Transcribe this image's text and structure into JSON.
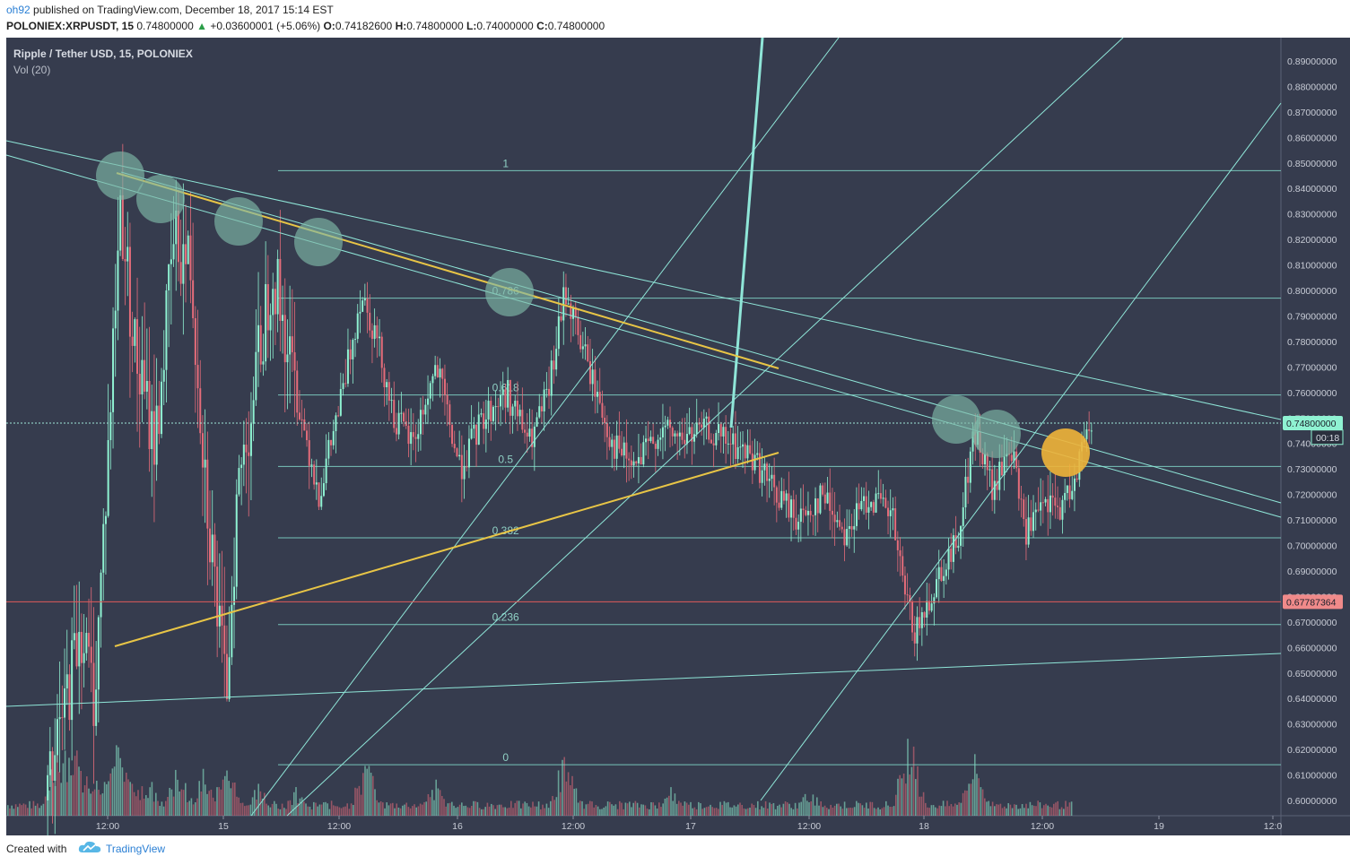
{
  "header": {
    "user": "oh92",
    "published": "published on TradingView.com, December 18, 2017 15:14 EST",
    "symbol": "POLONIEX:XRPUSDT, 15",
    "last": "0.74800000",
    "arrow": "▲",
    "change": "+0.03600001 (+5.06%)",
    "o_label": "O:",
    "o_value": "0.74182600",
    "h_label": "H:",
    "h_value": "0.74800000",
    "l_label": "L:",
    "l_value": "0.74000000",
    "c_label": "C:",
    "c_value": "0.74800000"
  },
  "legend": {
    "title": "Ripple / Tether USD, 15, POLONIEX",
    "indicator": "Vol (20)"
  },
  "footer": {
    "created_with": "Created with",
    "brand": "TradingView",
    "logo_icon": "tradingview-cloud-icon"
  },
  "colors": {
    "background": "#363c4e",
    "up": "#8ff2d2",
    "down": "#e56c7a",
    "fib": "#7fd3c5",
    "trend": "#8fe6d8",
    "yellow": "#e8c546",
    "circle_green": "#7fb8a8",
    "circle_orange": "#f0b43a",
    "red_line": "#e05a5a"
  },
  "chart_data": {
    "type": "candlestick",
    "title": "Ripple / Tether USD, 15, POLONIEX",
    "y_ticks": [
      "0.89000000",
      "0.88000000",
      "0.87000000",
      "0.86000000",
      "0.85000000",
      "0.84000000",
      "0.83000000",
      "0.82000000",
      "0.81000000",
      "0.80000000",
      "0.79000000",
      "0.78000000",
      "0.77000000",
      "0.76000000",
      "0.75000000",
      "0.74000000",
      "0.73000000",
      "0.72000000",
      "0.71000000",
      "0.70000000",
      "0.69000000",
      "0.68000000",
      "0.67000000",
      "0.66000000",
      "0.65000000",
      "0.64000000",
      "0.63000000",
      "0.62000000",
      "0.61000000",
      "0.60000000"
    ],
    "y_values": [
      0.89,
      0.88,
      0.87,
      0.86,
      0.85,
      0.84,
      0.83,
      0.82,
      0.81,
      0.8,
      0.79,
      0.78,
      0.77,
      0.76,
      0.75,
      0.74,
      0.73,
      0.72,
      0.71,
      0.7,
      0.69,
      0.68,
      0.67,
      0.66,
      0.65,
      0.64,
      0.63,
      0.62,
      0.61,
      0.6
    ],
    "x_ticks": [
      "12:00",
      "15",
      "12:00",
      "16",
      "12:00",
      "17",
      "12:00",
      "18",
      "12:00",
      "19",
      "12:0"
    ],
    "ylim": [
      0.595,
      0.905
    ],
    "fib_levels": [
      {
        "label": "1",
        "value": 0.847
      },
      {
        "label": "0.786",
        "value": 0.797
      },
      {
        "label": "0.618",
        "value": 0.759
      },
      {
        "label": "0.5",
        "value": 0.731
      },
      {
        "label": "0.382",
        "value": 0.703
      },
      {
        "label": "0.236",
        "value": 0.669
      },
      {
        "label": "0",
        "value": 0.614
      }
    ],
    "price_marks": [
      {
        "label": "0.74800000",
        "value": 0.748
      },
      {
        "label": "00:18",
        "value": 0.7435
      },
      {
        "label": "0.67787364",
        "value": 0.6779
      }
    ],
    "price_path": [
      {
        "t": 14.24,
        "p": 0.6
      },
      {
        "t": 14.3,
        "p": 0.63
      },
      {
        "t": 14.38,
        "p": 0.67
      },
      {
        "t": 14.44,
        "p": 0.64
      },
      {
        "t": 14.5,
        "p": 0.74
      },
      {
        "t": 14.55,
        "p": 0.835
      },
      {
        "t": 14.62,
        "p": 0.77
      },
      {
        "t": 14.7,
        "p": 0.74
      },
      {
        "t": 14.78,
        "p": 0.82
      },
      {
        "t": 14.85,
        "p": 0.81
      },
      {
        "t": 14.92,
        "p": 0.72
      },
      {
        "t": 15.0,
        "p": 0.64
      },
      {
        "t": 15.05,
        "p": 0.72
      },
      {
        "t": 15.12,
        "p": 0.76
      },
      {
        "t": 15.2,
        "p": 0.81
      },
      {
        "t": 15.3,
        "p": 0.76
      },
      {
        "t": 15.4,
        "p": 0.72
      },
      {
        "t": 15.5,
        "p": 0.76
      },
      {
        "t": 15.58,
        "p": 0.8
      },
      {
        "t": 15.65,
        "p": 0.78
      },
      {
        "t": 15.72,
        "p": 0.75
      },
      {
        "t": 15.8,
        "p": 0.74
      },
      {
        "t": 15.9,
        "p": 0.77
      },
      {
        "t": 16.0,
        "p": 0.73
      },
      {
        "t": 16.1,
        "p": 0.75
      },
      {
        "t": 16.2,
        "p": 0.76
      },
      {
        "t": 16.3,
        "p": 0.74
      },
      {
        "t": 16.38,
        "p": 0.76
      },
      {
        "t": 16.45,
        "p": 0.8
      },
      {
        "t": 16.55,
        "p": 0.77
      },
      {
        "t": 16.65,
        "p": 0.74
      },
      {
        "t": 16.75,
        "p": 0.73
      },
      {
        "t": 16.85,
        "p": 0.745
      },
      {
        "t": 16.95,
        "p": 0.742
      },
      {
        "t": 17.05,
        "p": 0.745
      },
      {
        "t": 17.15,
        "p": 0.74
      },
      {
        "t": 17.25,
        "p": 0.735
      },
      {
        "t": 17.35,
        "p": 0.72
      },
      {
        "t": 17.45,
        "p": 0.71
      },
      {
        "t": 17.55,
        "p": 0.72
      },
      {
        "t": 17.65,
        "p": 0.705
      },
      {
        "t": 17.75,
        "p": 0.72
      },
      {
        "t": 17.85,
        "p": 0.71
      },
      {
        "t": 17.9,
        "p": 0.68
      },
      {
        "t": 17.95,
        "p": 0.665
      },
      {
        "t": 18.05,
        "p": 0.69
      },
      {
        "t": 18.12,
        "p": 0.7
      },
      {
        "t": 18.2,
        "p": 0.745
      },
      {
        "t": 18.28,
        "p": 0.72
      },
      {
        "t": 18.35,
        "p": 0.74
      },
      {
        "t": 18.42,
        "p": 0.705
      },
      {
        "t": 18.5,
        "p": 0.715
      },
      {
        "t": 18.58,
        "p": 0.715
      },
      {
        "t": 18.65,
        "p": 0.735
      },
      {
        "t": 18.7,
        "p": 0.748
      }
    ],
    "volume_peaks": [
      {
        "t": 14.28,
        "h": 0.6
      },
      {
        "t": 14.34,
        "h": 0.8
      },
      {
        "t": 14.4,
        "h": 0.5
      },
      {
        "t": 14.48,
        "h": 0.45
      },
      {
        "t": 14.55,
        "h": 0.7
      },
      {
        "t": 14.62,
        "h": 0.35
      },
      {
        "t": 14.68,
        "h": 0.3
      },
      {
        "t": 14.8,
        "h": 0.45
      },
      {
        "t": 14.9,
        "h": 0.4
      },
      {
        "t": 15.0,
        "h": 0.55
      },
      {
        "t": 15.15,
        "h": 0.3
      },
      {
        "t": 15.3,
        "h": 0.25
      },
      {
        "t": 15.6,
        "h": 0.5
      },
      {
        "t": 15.9,
        "h": 0.3
      },
      {
        "t": 16.45,
        "h": 0.55
      },
      {
        "t": 16.9,
        "h": 0.25
      },
      {
        "t": 17.5,
        "h": 0.25
      },
      {
        "t": 17.92,
        "h": 0.75
      },
      {
        "t": 18.2,
        "h": 0.5
      },
      {
        "t": 18.65,
        "h": 0.2
      }
    ]
  }
}
